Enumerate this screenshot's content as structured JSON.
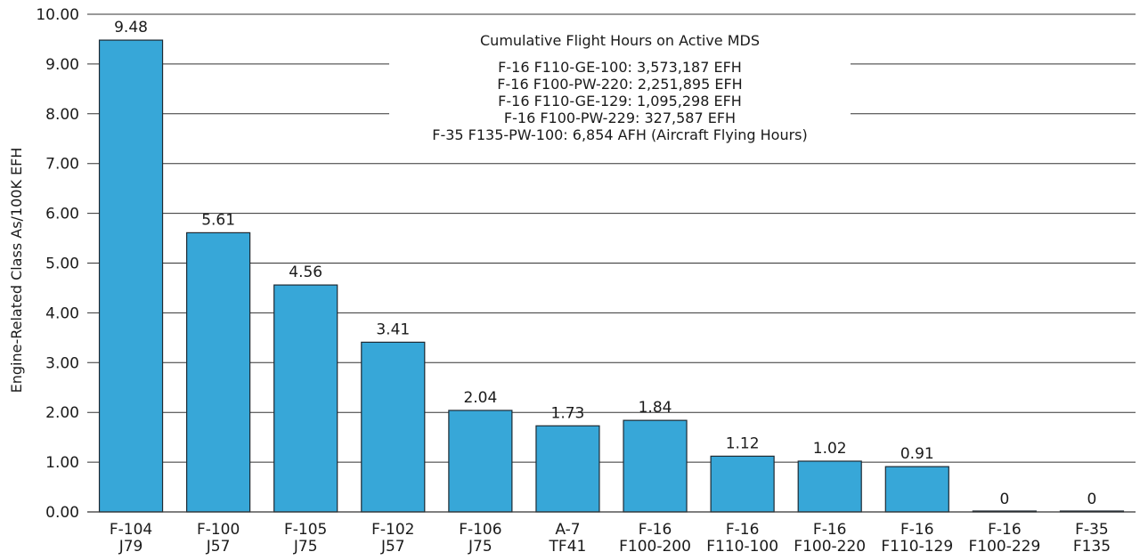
{
  "chart_data": {
    "type": "bar",
    "ylabel": "Engine-Related Class As/100K EFH",
    "xlabel": "",
    "ylim": [
      0,
      10
    ],
    "y_ticks": [
      "0.00",
      "1.00",
      "2.00",
      "3.00",
      "4.00",
      "5.00",
      "6.00",
      "7.00",
      "8.00",
      "9.00",
      "10.00"
    ],
    "grid": true,
    "categories": [
      [
        "F-104",
        "J79"
      ],
      [
        "F-100",
        "J57"
      ],
      [
        "F-105",
        "J75"
      ],
      [
        "F-102",
        "J57"
      ],
      [
        "F-106",
        "J75"
      ],
      [
        "A-7",
        "TF41"
      ],
      [
        "F-16",
        "F100-200"
      ],
      [
        "F-16",
        "F110-100"
      ],
      [
        "F-16",
        "F100-220"
      ],
      [
        "F-16",
        "F110-129"
      ],
      [
        "F-16",
        "F100-229"
      ],
      [
        "F-35",
        "F135"
      ]
    ],
    "values": [
      9.48,
      5.61,
      4.56,
      3.41,
      2.04,
      1.73,
      1.84,
      1.12,
      1.02,
      0.91,
      0,
      0
    ],
    "value_labels": [
      "9.48",
      "5.61",
      "4.56",
      "3.41",
      "2.04",
      "1.73",
      "1.84",
      "1.12",
      "1.02",
      "0.91",
      "0",
      "0"
    ],
    "bar_color": "#37a7d8",
    "annotation": {
      "title": "Cumulative Flight Hours on Active MDS",
      "lines": [
        "F-16 F110-GE-100: 3,573,187 EFH",
        "F-16 F100-PW-220: 2,251,895 EFH",
        "F-16 F110-GE-129: 1,095,298 EFH",
        "F-16 F100-PW-229: 327,587 EFH",
        "F-35 F135-PW-100: 6,854 AFH (Aircraft Flying Hours)"
      ]
    }
  }
}
